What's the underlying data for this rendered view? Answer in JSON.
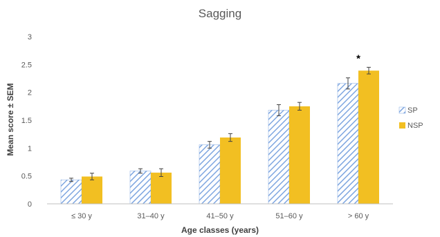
{
  "chart_data": {
    "type": "bar",
    "title": "Sagging",
    "xlabel": "Age classes (years)",
    "ylabel": "Mean score ± SEM",
    "categories": [
      "≤ 30 y",
      "31–40 y",
      "41–50 y",
      "51–60 y",
      "> 60 y"
    ],
    "ylim": [
      0,
      3
    ],
    "yticks": [
      0,
      0.5,
      1,
      1.5,
      2,
      2.5,
      3
    ],
    "ytick_labels": [
      "0",
      "0.5",
      "1",
      "1.5",
      "2",
      "2.5",
      "3"
    ],
    "grid": false,
    "legend_position": "right",
    "series": [
      {
        "name": "SP",
        "values": [
          0.43,
          0.59,
          1.06,
          1.68,
          2.16
        ],
        "errors": [
          0.03,
          0.04,
          0.06,
          0.1,
          0.1
        ],
        "pattern": "diagonal-hatch",
        "color": "#7ea6e0"
      },
      {
        "name": "NSP",
        "values": [
          0.49,
          0.56,
          1.19,
          1.75,
          2.39
        ],
        "errors": [
          0.06,
          0.07,
          0.07,
          0.07,
          0.06
        ],
        "pattern": "solid",
        "color": "#f2bf22"
      }
    ],
    "annotations": [
      {
        "category_index": 4,
        "text": "*"
      }
    ]
  }
}
